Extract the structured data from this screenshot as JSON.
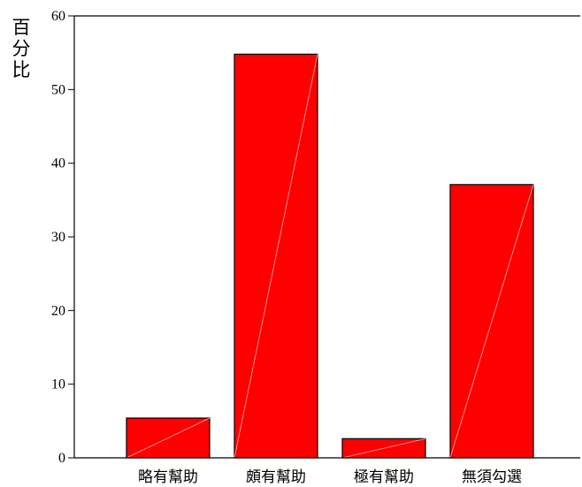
{
  "chart_data": {
    "type": "bar",
    "ylabel": "百分比",
    "xlabel": "",
    "title": "",
    "ylim": [
      0,
      60
    ],
    "yticks": [
      0,
      10,
      20,
      30,
      40,
      50,
      60
    ],
    "categories": [
      "略有幫助",
      "頗有幫助",
      "極有幫助",
      "無須勾選"
    ],
    "values": [
      5.4,
      54.8,
      2.6,
      37.1
    ],
    "grid": false,
    "legend": "none",
    "colors": {
      "bar": "#ff0000",
      "bar_edge": "#000000",
      "axis": "#000000"
    }
  }
}
